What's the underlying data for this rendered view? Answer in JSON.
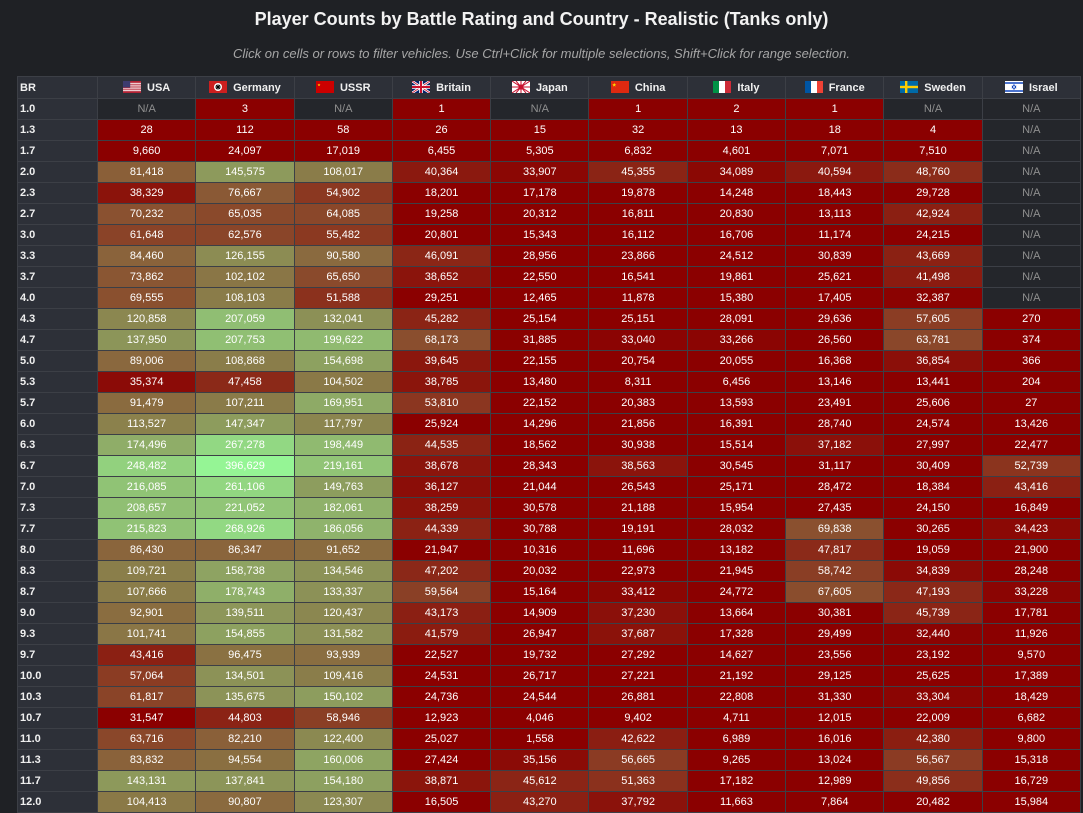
{
  "header": {
    "title": "Player Counts by Battle Rating and Country - Realistic (Tanks only)",
    "subtitle": "Click on cells or rows to filter vehicles. Use Ctrl+Click for multiple selections, Shift+Click for range selection."
  },
  "colors": {
    "high": "#95f595",
    "mid": "#8a7a48",
    "low": "#8b0000",
    "na": "#24262b"
  },
  "chart_data": {
    "type": "heatmap",
    "title": "Player Counts by Battle Rating and Country - Realistic (Tanks only)",
    "row_header": "BR",
    "na_label": "N/A",
    "columns": [
      {
        "name": "USA",
        "flag": "flag-usa-icon"
      },
      {
        "name": "Germany",
        "flag": "flag-germany-icon"
      },
      {
        "name": "USSR",
        "flag": "flag-ussr-icon"
      },
      {
        "name": "Britain",
        "flag": "flag-britain-icon"
      },
      {
        "name": "Japan",
        "flag": "flag-japan-icon"
      },
      {
        "name": "China",
        "flag": "flag-china-icon"
      },
      {
        "name": "Italy",
        "flag": "flag-italy-icon"
      },
      {
        "name": "France",
        "flag": "flag-france-icon"
      },
      {
        "name": "Sweden",
        "flag": "flag-sweden-icon"
      },
      {
        "name": "Israel",
        "flag": "flag-israel-icon"
      }
    ],
    "rows": [
      {
        "br": "1.0",
        "values": [
          null,
          3,
          null,
          1,
          null,
          1,
          2,
          1,
          null,
          null
        ]
      },
      {
        "br": "1.3",
        "values": [
          28,
          112,
          58,
          26,
          15,
          32,
          13,
          18,
          4,
          null
        ]
      },
      {
        "br": "1.7",
        "values": [
          9660,
          24097,
          17019,
          6455,
          5305,
          6832,
          4601,
          7071,
          7510,
          null
        ]
      },
      {
        "br": "2.0",
        "values": [
          81418,
          145575,
          108017,
          40364,
          33907,
          45355,
          34089,
          40594,
          48760,
          null
        ]
      },
      {
        "br": "2.3",
        "values": [
          38329,
          76667,
          54902,
          18201,
          17178,
          19878,
          14248,
          18443,
          29728,
          null
        ]
      },
      {
        "br": "2.7",
        "values": [
          70232,
          65035,
          64085,
          19258,
          20312,
          16811,
          20830,
          13113,
          42924,
          null
        ]
      },
      {
        "br": "3.0",
        "values": [
          61648,
          62576,
          55482,
          20801,
          15343,
          16112,
          16706,
          11174,
          24215,
          null
        ]
      },
      {
        "br": "3.3",
        "values": [
          84460,
          126155,
          90580,
          46091,
          28956,
          23866,
          24512,
          30839,
          43669,
          null
        ]
      },
      {
        "br": "3.7",
        "values": [
          73862,
          102102,
          65650,
          38652,
          22550,
          16541,
          19861,
          25621,
          41498,
          null
        ]
      },
      {
        "br": "4.0",
        "values": [
          69555,
          108103,
          51588,
          29251,
          12465,
          11878,
          15380,
          17405,
          32387,
          null
        ]
      },
      {
        "br": "4.3",
        "values": [
          120858,
          207059,
          132041,
          45282,
          25154,
          25151,
          28091,
          29636,
          57605,
          270
        ]
      },
      {
        "br": "4.7",
        "values": [
          137950,
          207753,
          199622,
          68173,
          31885,
          33040,
          33266,
          26560,
          63781,
          374
        ]
      },
      {
        "br": "5.0",
        "values": [
          89006,
          108868,
          154698,
          39645,
          22155,
          20754,
          20055,
          16368,
          36854,
          366
        ]
      },
      {
        "br": "5.3",
        "values": [
          35374,
          47458,
          104502,
          38785,
          13480,
          8311,
          6456,
          13146,
          13441,
          204
        ]
      },
      {
        "br": "5.7",
        "values": [
          91479,
          107211,
          169951,
          53810,
          22152,
          20383,
          13593,
          23491,
          25606,
          27
        ]
      },
      {
        "br": "6.0",
        "values": [
          113527,
          147347,
          117797,
          25924,
          14296,
          21856,
          16391,
          28740,
          24574,
          13426
        ]
      },
      {
        "br": "6.3",
        "values": [
          174496,
          267278,
          198449,
          44535,
          18562,
          30938,
          15514,
          37182,
          27997,
          22477
        ]
      },
      {
        "br": "6.7",
        "values": [
          248482,
          396629,
          219161,
          38678,
          28343,
          38563,
          30545,
          31117,
          30409,
          52739
        ]
      },
      {
        "br": "7.0",
        "values": [
          216085,
          261106,
          149763,
          36127,
          21044,
          26543,
          25171,
          28472,
          18384,
          43416
        ]
      },
      {
        "br": "7.3",
        "values": [
          208657,
          221052,
          182061,
          38259,
          30578,
          21188,
          15954,
          27435,
          24150,
          16849
        ]
      },
      {
        "br": "7.7",
        "values": [
          215823,
          268926,
          186056,
          44339,
          30788,
          19191,
          28032,
          69838,
          30265,
          34423
        ]
      },
      {
        "br": "8.0",
        "values": [
          86430,
          86347,
          91652,
          21947,
          10316,
          11696,
          13182,
          47817,
          19059,
          21900
        ]
      },
      {
        "br": "8.3",
        "values": [
          109721,
          158738,
          134546,
          47202,
          20032,
          22973,
          21945,
          58742,
          34839,
          28248
        ]
      },
      {
        "br": "8.7",
        "values": [
          107666,
          178743,
          133337,
          59564,
          15164,
          33412,
          24772,
          67605,
          47193,
          33228
        ]
      },
      {
        "br": "9.0",
        "values": [
          92901,
          139511,
          120437,
          43173,
          14909,
          37230,
          13664,
          30381,
          45739,
          17781
        ]
      },
      {
        "br": "9.3",
        "values": [
          101741,
          154855,
          131582,
          41579,
          26947,
          37687,
          17328,
          29499,
          32440,
          11926
        ]
      },
      {
        "br": "9.7",
        "values": [
          43416,
          96475,
          93939,
          22527,
          19732,
          27292,
          14627,
          23556,
          23192,
          9570
        ]
      },
      {
        "br": "10.0",
        "values": [
          57064,
          134501,
          109416,
          24531,
          26717,
          27221,
          21192,
          29125,
          25625,
          17389
        ]
      },
      {
        "br": "10.3",
        "values": [
          61817,
          135675,
          150102,
          24736,
          24544,
          26881,
          22808,
          31330,
          33304,
          18429
        ]
      },
      {
        "br": "10.7",
        "values": [
          31547,
          44803,
          58946,
          12923,
          4046,
          9402,
          4711,
          12015,
          22009,
          6682
        ]
      },
      {
        "br": "11.0",
        "values": [
          63716,
          82210,
          122400,
          25027,
          1558,
          42622,
          6989,
          16016,
          42380,
          9800
        ]
      },
      {
        "br": "11.3",
        "values": [
          83832,
          94554,
          160006,
          27424,
          35156,
          56665,
          9265,
          13024,
          56567,
          15318
        ]
      },
      {
        "br": "11.7",
        "values": [
          143131,
          137841,
          154180,
          38871,
          45612,
          51363,
          17182,
          12989,
          49856,
          16729
        ]
      },
      {
        "br": "12.0",
        "values": [
          104413,
          90807,
          123307,
          16505,
          43270,
          37792,
          11663,
          7864,
          20482,
          15984
        ]
      }
    ]
  }
}
